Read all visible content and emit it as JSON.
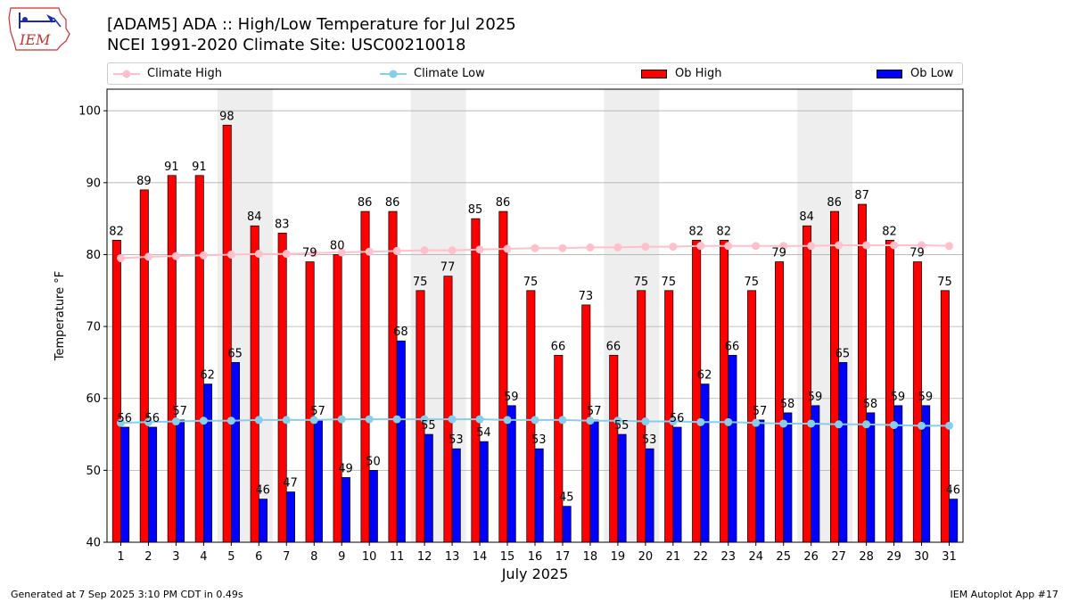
{
  "header": {
    "title_line1": "[ADAM5] ADA :: High/Low Temperature for Jul 2025",
    "title_line2": "NCEI 1991-2020 Climate Site: USC00210018",
    "logo_text": "IEM"
  },
  "legend": {
    "climate_high": "Climate High",
    "climate_low": "Climate Low",
    "ob_high": "Ob High",
    "ob_low": "Ob Low"
  },
  "footer": {
    "generated": "Generated at 7 Sep 2025 3:10 PM CDT in 0.49s",
    "app": "IEM Autoplot App #17"
  },
  "colors": {
    "ob_high": "#ff0000",
    "ob_low": "#0000ff",
    "climate_high": "#ffc0cb",
    "climate_low": "#87ceeb",
    "weekend_shade": "#eeeeee",
    "grid": "#b0b0b0"
  },
  "chart_data": {
    "type": "bar",
    "title": "[ADAM5] ADA :: High/Low Temperature for Jul 2025",
    "subtitle": "NCEI 1991-2020 Climate Site: USC00210018",
    "xlabel": "July 2025",
    "ylabel": "Temperature °F",
    "ylim": [
      40,
      103
    ],
    "yticks": [
      40,
      50,
      60,
      70,
      80,
      90,
      100
    ],
    "grid": true,
    "legend_position": "top",
    "categories": [
      "1",
      "2",
      "3",
      "4",
      "5",
      "6",
      "7",
      "8",
      "9",
      "10",
      "11",
      "12",
      "13",
      "14",
      "15",
      "16",
      "17",
      "18",
      "19",
      "20",
      "21",
      "22",
      "23",
      "24",
      "25",
      "26",
      "27",
      "28",
      "29",
      "30",
      "31"
    ],
    "shaded_days": [
      [
        5,
        6
      ],
      [
        12,
        13
      ],
      [
        19,
        20
      ],
      [
        26,
        27
      ]
    ],
    "series": [
      {
        "name": "Ob High",
        "kind": "bar",
        "values": [
          82,
          89,
          91,
          91,
          98,
          84,
          83,
          79,
          80,
          86,
          86,
          75,
          77,
          85,
          86,
          75,
          66,
          73,
          66,
          75,
          75,
          82,
          82,
          75,
          79,
          84,
          86,
          87,
          82,
          79,
          75
        ]
      },
      {
        "name": "Ob Low",
        "kind": "bar",
        "values": [
          56,
          56,
          57,
          62,
          65,
          46,
          47,
          57,
          49,
          50,
          68,
          55,
          53,
          54,
          59,
          53,
          45,
          57,
          55,
          53,
          56,
          62,
          66,
          57,
          58,
          59,
          65,
          58,
          59,
          59,
          46
        ]
      },
      {
        "name": "Climate High",
        "kind": "line",
        "values": [
          79.5,
          79.7,
          79.8,
          79.9,
          80.0,
          80.1,
          80.1,
          80.2,
          80.3,
          80.4,
          80.5,
          80.6,
          80.6,
          80.7,
          80.8,
          80.9,
          80.9,
          81.0,
          81.0,
          81.1,
          81.1,
          81.2,
          81.2,
          81.2,
          81.2,
          81.2,
          81.3,
          81.3,
          81.3,
          81.3,
          81.2
        ]
      },
      {
        "name": "Climate Low",
        "kind": "line",
        "values": [
          56.6,
          56.7,
          56.8,
          56.9,
          56.9,
          57.0,
          57.0,
          57.0,
          57.1,
          57.1,
          57.1,
          57.1,
          57.1,
          57.1,
          57.0,
          57.0,
          57.0,
          56.9,
          56.9,
          56.8,
          56.8,
          56.7,
          56.7,
          56.6,
          56.5,
          56.5,
          56.4,
          56.4,
          56.3,
          56.2,
          56.2
        ]
      }
    ]
  }
}
